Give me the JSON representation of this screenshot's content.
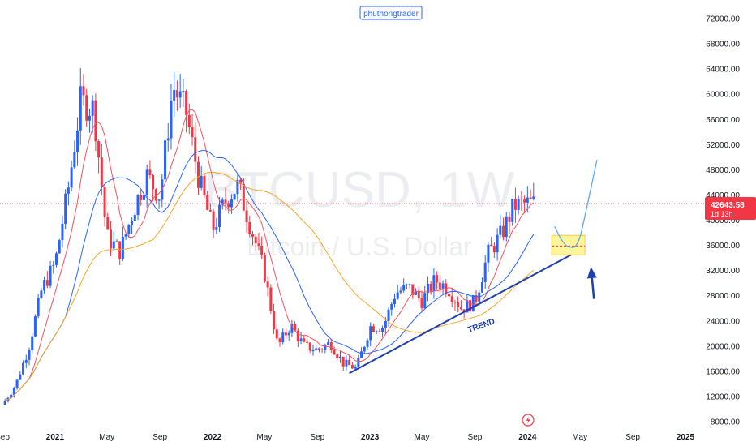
{
  "author_tag": "phuthongtrader",
  "watermark": {
    "symbol": "BTCUSD, 1W",
    "name": "Bitcoin / U.S. Dollar"
  },
  "last_price": {
    "value": "42643.58",
    "countdown": "1d 13h"
  },
  "colors": {
    "up": "#2962ff",
    "down": "#f23645",
    "ma_fast": "#f7525f",
    "ma_mid": "#2962ff",
    "ma_slow": "#f5a623",
    "trendline": "#1e3fae",
    "zone_fill": "#fff59d",
    "zone_mid": "#e53935",
    "projection": "#5fa8e8"
  },
  "chart_data": {
    "type": "candlestick",
    "symbol": "BTCUSD",
    "interval": "1W",
    "ylim": [
      8000,
      72000
    ],
    "y_ticks": [
      "72000.00",
      "68000.00",
      "64000.00",
      "60000.00",
      "56000.00",
      "52000.00",
      "48000.00",
      "44000.00",
      "40000.00",
      "36000.00",
      "32000.00",
      "28000.00",
      "24000.00",
      "20000.00",
      "16000.00",
      "12000.00",
      "8000.00"
    ],
    "y_tick_values": [
      72000,
      68000,
      64000,
      60000,
      56000,
      52000,
      48000,
      44000,
      40000,
      36000,
      32000,
      28000,
      24000,
      20000,
      16000,
      12000,
      8000
    ],
    "x_ticks": [
      "Sep",
      "2021",
      "May",
      "Sep",
      "2022",
      "May",
      "Sep",
      "2023",
      "May",
      "Sep",
      "2024",
      "May",
      "Sep",
      "2025"
    ],
    "x_tick_dates": [
      "2020-09-01",
      "2021-01-01",
      "2021-05-01",
      "2021-09-01",
      "2022-01-01",
      "2022-05-01",
      "2022-09-01",
      "2023-01-01",
      "2023-05-01",
      "2023-09-01",
      "2024-01-01",
      "2024-05-01",
      "2024-09-01",
      "2025-01-01"
    ],
    "series_close_monthly": {
      "dates": [
        "2020-09",
        "2020-10",
        "2020-11",
        "2020-12",
        "2021-01",
        "2021-02",
        "2021-03",
        "2021-04",
        "2021-05",
        "2021-06",
        "2021-07",
        "2021-08",
        "2021-09",
        "2021-10",
        "2021-11",
        "2021-12",
        "2022-01",
        "2022-02",
        "2022-03",
        "2022-04",
        "2022-05",
        "2022-06",
        "2022-07",
        "2022-08",
        "2022-09",
        "2022-10",
        "2022-11",
        "2022-12",
        "2023-01",
        "2023-02",
        "2023-03",
        "2023-04",
        "2023-05",
        "2023-06",
        "2023-07",
        "2023-08",
        "2023-09",
        "2023-10",
        "2023-11",
        "2023-12",
        "2024-01"
      ],
      "values": [
        10700,
        13800,
        19700,
        29000,
        33100,
        45200,
        58800,
        57700,
        37300,
        35000,
        41500,
        47100,
        43800,
        61300,
        57000,
        46300,
        38500,
        43200,
        45500,
        38600,
        31800,
        19900,
        23300,
        20000,
        19400,
        20500,
        17200,
        16500,
        23100,
        23100,
        28500,
        29300,
        27200,
        30500,
        29200,
        26000,
        27000,
        34600,
        37700,
        42300,
        42643
      ]
    },
    "annotations": {
      "trend_label": "TREND",
      "trendline": {
        "from": [
          "2022-11-14",
          15700
        ],
        "to": [
          "2024-04-22",
          34900
        ]
      },
      "target_zone": {
        "from": "2024-02-26",
        "to": "2024-05-13",
        "low": 34500,
        "high": 37600,
        "mid": 35900
      },
      "projection_path": [
        [
          "2024-03-04",
          39000
        ],
        [
          "2024-04-08",
          35800
        ],
        [
          "2024-05-06",
          38500
        ],
        [
          "2024-06-10",
          49600
        ]
      ],
      "arrow": {
        "tail": [
          "2024-06-03",
          27500
        ],
        "head": [
          "2024-05-27",
          32600
        ]
      }
    }
  }
}
